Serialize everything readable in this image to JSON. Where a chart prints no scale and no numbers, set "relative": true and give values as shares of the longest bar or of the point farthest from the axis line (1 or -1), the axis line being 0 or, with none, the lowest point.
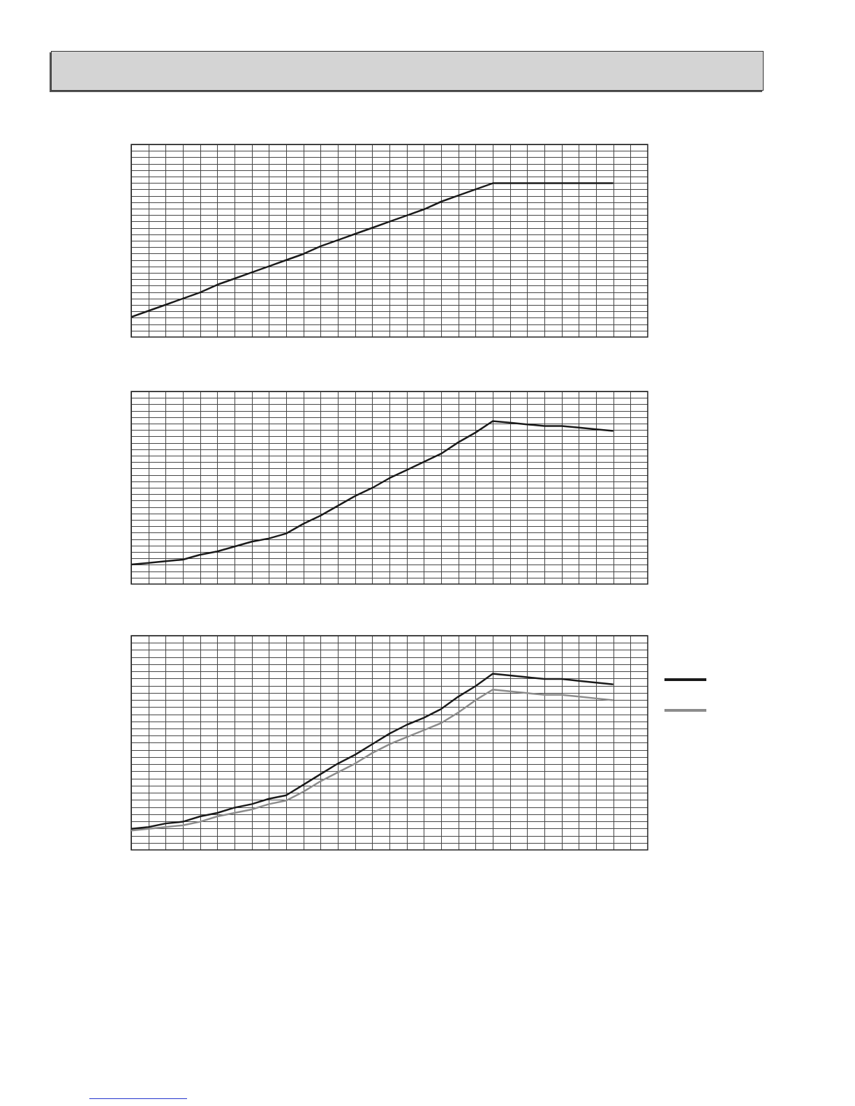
{
  "chart_data": [
    {
      "type": "line",
      "relative": true,
      "categories": [
        null,
        null,
        null,
        null,
        null,
        null,
        null,
        null,
        null,
        null,
        null,
        null,
        null,
        null,
        null,
        null,
        null,
        null,
        null,
        null,
        null,
        null,
        null,
        null,
        null,
        null,
        null,
        null,
        null,
        null,
        null
      ],
      "series": [
        {
          "color": "#1a1a1a",
          "values": [
            0.13,
            0.17,
            0.21,
            0.25,
            0.29,
            0.34,
            0.38,
            0.42,
            0.46,
            0.5,
            0.54,
            0.59,
            0.63,
            0.67,
            0.71,
            0.75,
            0.79,
            0.83,
            0.88,
            0.92,
            0.96,
            1,
            1,
            1,
            1,
            1,
            1,
            1,
            1,
            null,
            null
          ]
        }
      ]
    },
    {
      "type": "line",
      "relative": true,
      "categories": [
        null,
        null,
        null,
        null,
        null,
        null,
        null,
        null,
        null,
        null,
        null,
        null,
        null,
        null,
        null,
        null,
        null,
        null,
        null,
        null,
        null,
        null,
        null,
        null,
        null,
        null,
        null,
        null,
        null,
        null,
        null
      ],
      "series": [
        {
          "color": "#1a1a1a",
          "values": [
            0.12,
            0.13,
            0.14,
            0.15,
            0.18,
            0.2,
            0.23,
            0.26,
            0.28,
            0.31,
            0.37,
            0.42,
            0.48,
            0.54,
            0.59,
            0.65,
            0.7,
            0.75,
            0.8,
            0.87,
            0.93,
            1,
            0.99,
            0.98,
            0.97,
            0.97,
            0.96,
            0.95,
            0.94,
            null,
            null
          ]
        }
      ]
    },
    {
      "type": "line",
      "relative": true,
      "categories": [
        null,
        null,
        null,
        null,
        null,
        null,
        null,
        null,
        null,
        null,
        null,
        null,
        null,
        null,
        null,
        null,
        null,
        null,
        null,
        null,
        null,
        null,
        null,
        null,
        null,
        null,
        null,
        null,
        null,
        null,
        null
      ],
      "series": [
        {
          "color": "#1a1a1a",
          "values": [
            0.12,
            0.13,
            0.15,
            0.16,
            0.19,
            0.21,
            0.24,
            0.26,
            0.29,
            0.31,
            0.37,
            0.43,
            0.49,
            0.54,
            0.6,
            0.66,
            0.71,
            0.75,
            0.8,
            0.87,
            0.93,
            1,
            0.99,
            0.98,
            0.97,
            0.97,
            0.96,
            0.95,
            0.94,
            null,
            null
          ]
        },
        {
          "color": "#8c8c8c",
          "values": [
            0.11,
            0.12,
            0.13,
            0.14,
            0.16,
            0.19,
            0.21,
            0.23,
            0.26,
            0.28,
            0.33,
            0.39,
            0.44,
            0.49,
            0.55,
            0.6,
            0.64,
            0.68,
            0.72,
            0.78,
            0.85,
            0.91,
            0.9,
            0.89,
            0.88,
            0.88,
            0.87,
            0.86,
            0.85,
            null,
            null
          ]
        }
      ]
    }
  ]
}
